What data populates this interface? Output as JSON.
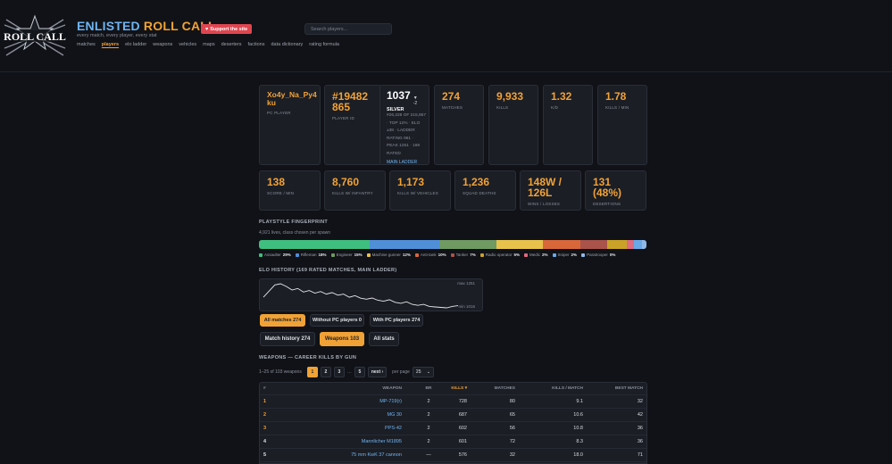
{
  "header": {
    "logo_text": "ROLL CALL",
    "brand_part1": "ENLISTED",
    "brand_part2": "ROLL CALL",
    "tagline": "every match, every player, every stat",
    "support_label": "Support the site",
    "search_placeholder": "Search players...",
    "nav": [
      "matches",
      "players",
      "elo ladder",
      "weapons",
      "vehicles",
      "maps",
      "deserters",
      "factions",
      "data dictionary",
      "rating formula"
    ],
    "nav_active": "players"
  },
  "profile": {
    "name": "Xo4y_Na_Py4ku",
    "name_line1": "Xo4y_Na_Py4",
    "name_line2": "ku",
    "name_label": "PC PLAYER",
    "id_line1": "#19482",
    "id_line2": "865",
    "id_label": "PLAYER ID",
    "elo_value": "1037",
    "elo_delta": "▼ -2",
    "elo_tier": "SILVER",
    "elo_desc": "#26,228 OF 215,957 · TOP 12% · ELO ±38 · LADDER RATING 961 · PEAK 1251 · 169 RATED",
    "elo_link": "MAIN LADDER"
  },
  "stats_row1": [
    {
      "value": "274",
      "label": "MATCHES"
    },
    {
      "value": "9,933",
      "label": "KILLS"
    },
    {
      "value": "1.32",
      "label": "K/D"
    },
    {
      "value": "1.78",
      "label": "KILLS / MIN"
    }
  ],
  "stats_row2": [
    {
      "value": "138",
      "label": "SCORE / MIN"
    },
    {
      "value": "8,760",
      "label": "KILLS W/ INFANTRY"
    },
    {
      "value": "1,173",
      "label": "KILLS W/ VEHICLES"
    },
    {
      "value": "1,236",
      "label": "SQUAD DEATHS"
    },
    {
      "value_line1": "148W /",
      "value_line2": "126L",
      "label": "WINS / LOSSES"
    },
    {
      "value_line1": "131",
      "value_line2": "(48%)",
      "label": "DESERTIONS"
    }
  ],
  "fingerprint": {
    "title": "PLAYSTYLE FINGERPRINT",
    "subtitle": "4,921 lives, class chosen per spawn",
    "classes": [
      {
        "name": "Assaulter",
        "pct": "29%",
        "share": 29,
        "color": "#3fbf7f"
      },
      {
        "name": "Rifleman",
        "pct": "18%",
        "share": 18,
        "color": "#4f8fd8"
      },
      {
        "name": "Engineer",
        "pct": "15%",
        "share": 15,
        "color": "#6f9a62"
      },
      {
        "name": "Machine gunner",
        "pct": "12%",
        "share": 12,
        "color": "#e8c24a"
      },
      {
        "name": "Anti-tank",
        "pct": "10%",
        "share": 10,
        "color": "#d9673a"
      },
      {
        "name": "Tanker",
        "pct": "7%",
        "share": 7,
        "color": "#a9534a"
      },
      {
        "name": "Radio operator",
        "pct": "5%",
        "share": 5,
        "color": "#c9a227"
      },
      {
        "name": "Medic",
        "pct": "2%",
        "share": 2,
        "color": "#e06a7e"
      },
      {
        "name": "Sniper",
        "pct": "2%",
        "share": 2,
        "color": "#6aa9e8"
      },
      {
        "name": "Paratrooper",
        "pct": "0%",
        "share": 0,
        "color": "#8fb9e8"
      }
    ]
  },
  "elo_history": {
    "title": "ELO HISTORY (169 RATED MATCHES, MAIN LADDER)",
    "max_label": "max 1251",
    "min_label": "min 1016",
    "points": [
      1120,
      1180,
      1240,
      1251,
      1225,
      1190,
      1205,
      1170,
      1185,
      1160,
      1175,
      1150,
      1165,
      1140,
      1150,
      1120,
      1135,
      1110,
      1100,
      1112,
      1090,
      1080,
      1095,
      1070,
      1060,
      1075,
      1050,
      1040,
      1050,
      1030,
      1025,
      1020,
      1016,
      1030,
      1037
    ]
  },
  "filters": [
    "All matches 274",
    "Without PC players 0",
    "With PC players 274"
  ],
  "filter_active": 0,
  "tabs": [
    "Match history 274",
    "Weapons 103",
    "All stats"
  ],
  "tab_active": 1,
  "weapons": {
    "title": "WEAPONS — CAREER KILLS BY GUN",
    "range_label": "1–25 of 103 weapons",
    "pages": [
      "1",
      "2",
      "3"
    ],
    "ellipsis": "…",
    "last_page": "5",
    "next_label": "next ›",
    "per_page_label": "per page",
    "per_page_value": "25",
    "columns": {
      "rank": "#",
      "weapon": "WEAPON",
      "br": "BR",
      "kills": "KILLS ▾",
      "matches": "MATCHES",
      "kpm": "KILLS / MATCH",
      "best": "BEST MATCH"
    },
    "rows": [
      {
        "rank": "1",
        "weapon": "MP-719(r)",
        "br": "2",
        "kills": "728",
        "matches": "80",
        "kpm": "9.1",
        "best": "32"
      },
      {
        "rank": "2",
        "weapon": "MG 30",
        "br": "2",
        "kills": "687",
        "matches": "65",
        "kpm": "10.6",
        "best": "42"
      },
      {
        "rank": "3",
        "weapon": "PPS-42",
        "br": "2",
        "kills": "602",
        "matches": "56",
        "kpm": "10.8",
        "best": "36"
      },
      {
        "rank": "4",
        "weapon": "Mannlicher M1895",
        "br": "2",
        "kills": "601",
        "matches": "72",
        "kpm": "8.3",
        "best": "36"
      },
      {
        "rank": "5",
        "weapon": "75 mm KwK 37 cannon",
        "br": "—",
        "kills": "576",
        "matches": "32",
        "kpm": "18.0",
        "best": "71"
      }
    ]
  }
}
